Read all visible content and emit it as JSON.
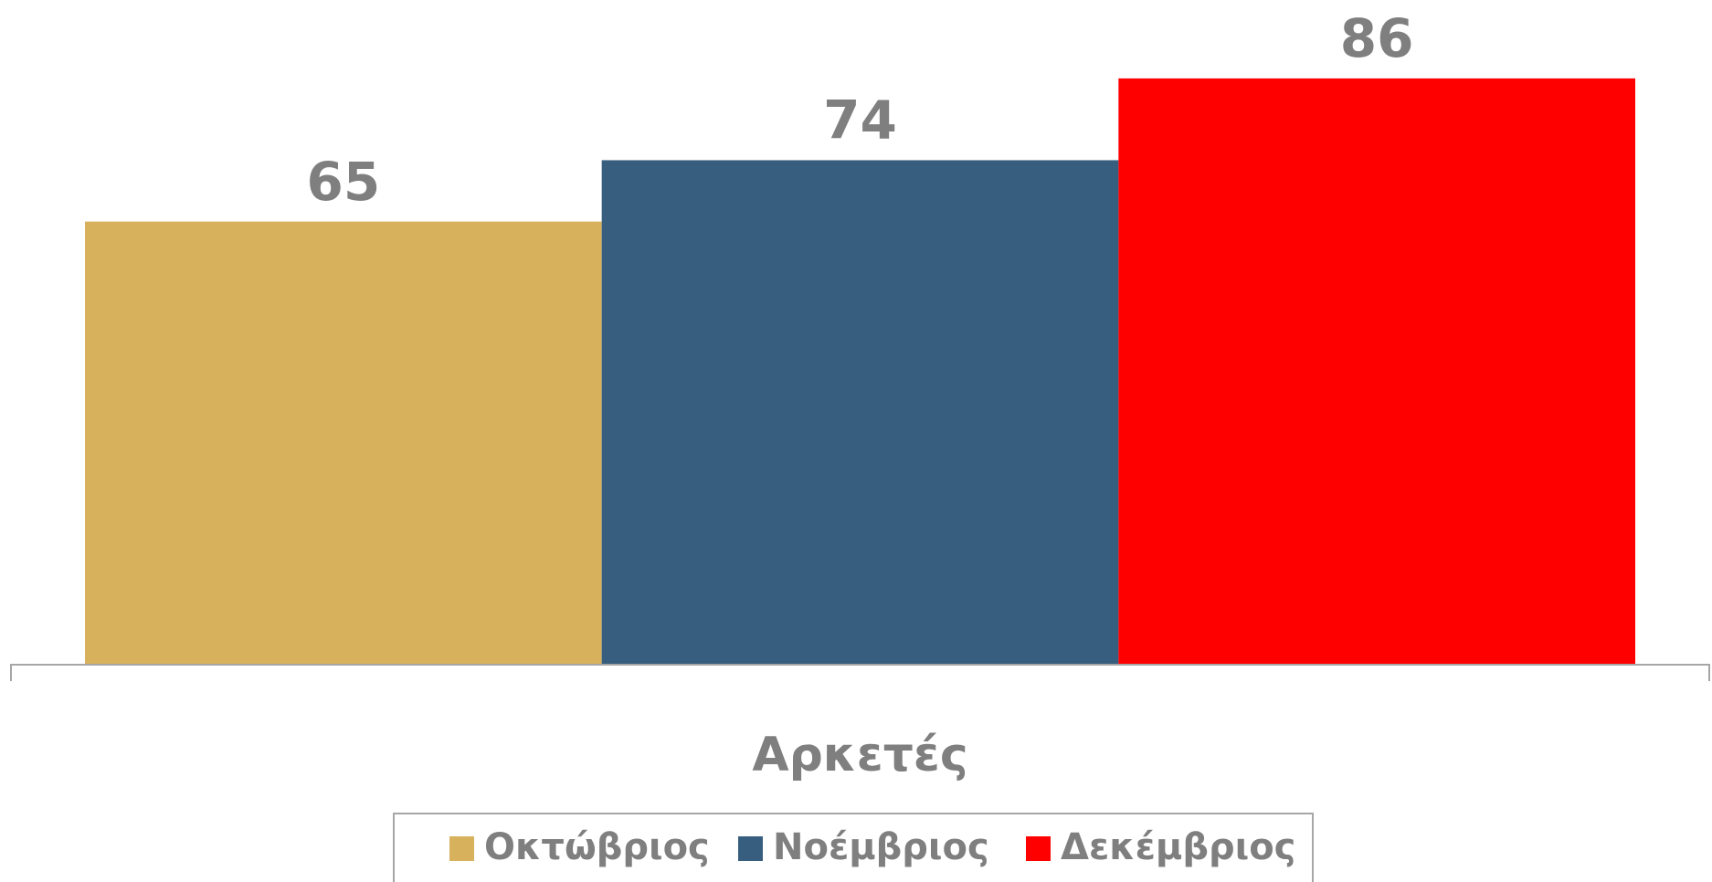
{
  "chart_data": {
    "type": "bar",
    "categories": [
      "Αρκετές"
    ],
    "series": [
      {
        "name": "Οκτώβριος",
        "color": "#d8b15c",
        "values": [
          65
        ]
      },
      {
        "name": "Νοέμβριος",
        "color": "#375e7f",
        "values": [
          74
        ]
      },
      {
        "name": "Δεκέμβριος",
        "color": "#ff0000",
        "values": [
          86
        ]
      }
    ],
    "ylim": [
      0,
      90
    ],
    "legend": "bottom",
    "grid": false
  }
}
